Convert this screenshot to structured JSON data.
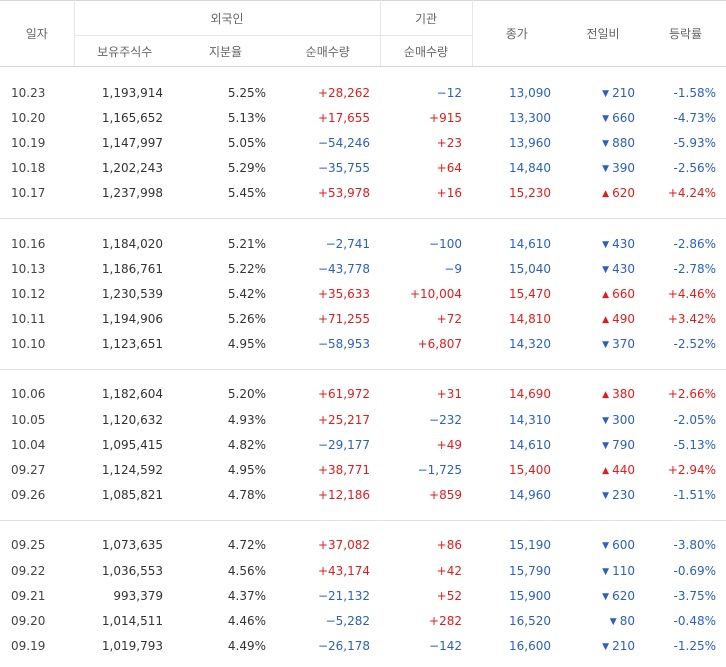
{
  "header": {
    "date": "일자",
    "foreign": "외국인",
    "institution": "기관",
    "close": "종가",
    "change": "전일비",
    "rate": "등락률",
    "holdings": "보유주식수",
    "share": "지분율",
    "foreign_net": "순매수량",
    "inst_net": "순매수량"
  },
  "groups": [
    {
      "rows": [
        {
          "date": "10.23",
          "holdings": "1,193,914",
          "share": "5.25%",
          "foreign_net": "+28,262",
          "inst_net": "−12",
          "close": "13,090",
          "dir": "down",
          "change": "210",
          "rate": "-1.58%"
        },
        {
          "date": "10.20",
          "holdings": "1,165,652",
          "share": "5.13%",
          "foreign_net": "+17,655",
          "inst_net": "+915",
          "close": "13,300",
          "dir": "down",
          "change": "660",
          "rate": "-4.73%"
        },
        {
          "date": "10.19",
          "holdings": "1,147,997",
          "share": "5.05%",
          "foreign_net": "−54,246",
          "inst_net": "+23",
          "close": "13,960",
          "dir": "down",
          "change": "880",
          "rate": "-5.93%"
        },
        {
          "date": "10.18",
          "holdings": "1,202,243",
          "share": "5.29%",
          "foreign_net": "−35,755",
          "inst_net": "+64",
          "close": "14,840",
          "dir": "down",
          "change": "390",
          "rate": "-2.56%"
        },
        {
          "date": "10.17",
          "holdings": "1,237,998",
          "share": "5.45%",
          "foreign_net": "+53,978",
          "inst_net": "+16",
          "close": "15,230",
          "dir": "up",
          "change": "620",
          "rate": "+4.24%"
        }
      ]
    },
    {
      "rows": [
        {
          "date": "10.16",
          "holdings": "1,184,020",
          "share": "5.21%",
          "foreign_net": "−2,741",
          "inst_net": "−100",
          "close": "14,610",
          "dir": "down",
          "change": "430",
          "rate": "-2.86%"
        },
        {
          "date": "10.13",
          "holdings": "1,186,761",
          "share": "5.22%",
          "foreign_net": "−43,778",
          "inst_net": "−9",
          "close": "15,040",
          "dir": "down",
          "change": "430",
          "rate": "-2.78%"
        },
        {
          "date": "10.12",
          "holdings": "1,230,539",
          "share": "5.42%",
          "foreign_net": "+35,633",
          "inst_net": "+10,004",
          "close": "15,470",
          "dir": "up",
          "change": "660",
          "rate": "+4.46%"
        },
        {
          "date": "10.11",
          "holdings": "1,194,906",
          "share": "5.26%",
          "foreign_net": "+71,255",
          "inst_net": "+72",
          "close": "14,810",
          "dir": "up",
          "change": "490",
          "rate": "+3.42%"
        },
        {
          "date": "10.10",
          "holdings": "1,123,651",
          "share": "4.95%",
          "foreign_net": "−58,953",
          "inst_net": "+6,807",
          "close": "14,320",
          "dir": "down",
          "change": "370",
          "rate": "-2.52%"
        }
      ]
    },
    {
      "rows": [
        {
          "date": "10.06",
          "holdings": "1,182,604",
          "share": "5.20%",
          "foreign_net": "+61,972",
          "inst_net": "+31",
          "close": "14,690",
          "dir": "up",
          "change": "380",
          "rate": "+2.66%"
        },
        {
          "date": "10.05",
          "holdings": "1,120,632",
          "share": "4.93%",
          "foreign_net": "+25,217",
          "inst_net": "−232",
          "close": "14,310",
          "dir": "down",
          "change": "300",
          "rate": "-2.05%"
        },
        {
          "date": "10.04",
          "holdings": "1,095,415",
          "share": "4.82%",
          "foreign_net": "−29,177",
          "inst_net": "+49",
          "close": "14,610",
          "dir": "down",
          "change": "790",
          "rate": "-5.13%"
        },
        {
          "date": "09.27",
          "holdings": "1,124,592",
          "share": "4.95%",
          "foreign_net": "+38,771",
          "inst_net": "−1,725",
          "close": "15,400",
          "dir": "up",
          "change": "440",
          "rate": "+2.94%"
        },
        {
          "date": "09.26",
          "holdings": "1,085,821",
          "share": "4.78%",
          "foreign_net": "+12,186",
          "inst_net": "+859",
          "close": "14,960",
          "dir": "down",
          "change": "230",
          "rate": "-1.51%"
        }
      ]
    },
    {
      "rows": [
        {
          "date": "09.25",
          "holdings": "1,073,635",
          "share": "4.72%",
          "foreign_net": "+37,082",
          "inst_net": "+86",
          "close": "15,190",
          "dir": "down",
          "change": "600",
          "rate": "-3.80%"
        },
        {
          "date": "09.22",
          "holdings": "1,036,553",
          "share": "4.56%",
          "foreign_net": "+43,174",
          "inst_net": "+42",
          "close": "15,790",
          "dir": "down",
          "change": "110",
          "rate": "-0.69%"
        },
        {
          "date": "09.21",
          "holdings": "993,379",
          "share": "4.37%",
          "foreign_net": "−21,132",
          "inst_net": "+52",
          "close": "15,900",
          "dir": "down",
          "change": "620",
          "rate": "-3.75%"
        },
        {
          "date": "09.20",
          "holdings": "1,014,511",
          "share": "4.46%",
          "foreign_net": "−5,282",
          "inst_net": "+282",
          "close": "16,520",
          "dir": "down",
          "change": "80",
          "rate": "-0.48%"
        },
        {
          "date": "09.19",
          "holdings": "1,019,793",
          "share": "4.49%",
          "foreign_net": "−26,178",
          "inst_net": "−142",
          "close": "16,600",
          "dir": "down",
          "change": "210",
          "rate": "-1.25%"
        }
      ]
    }
  ],
  "colors": {
    "up": "#e21c1c",
    "down": "#2b5fc4",
    "close_down": "#2b5fc4",
    "close_up": "#e21c1c"
  },
  "icons": {
    "up": "triangle-up-icon",
    "down": "triangle-down-icon"
  }
}
